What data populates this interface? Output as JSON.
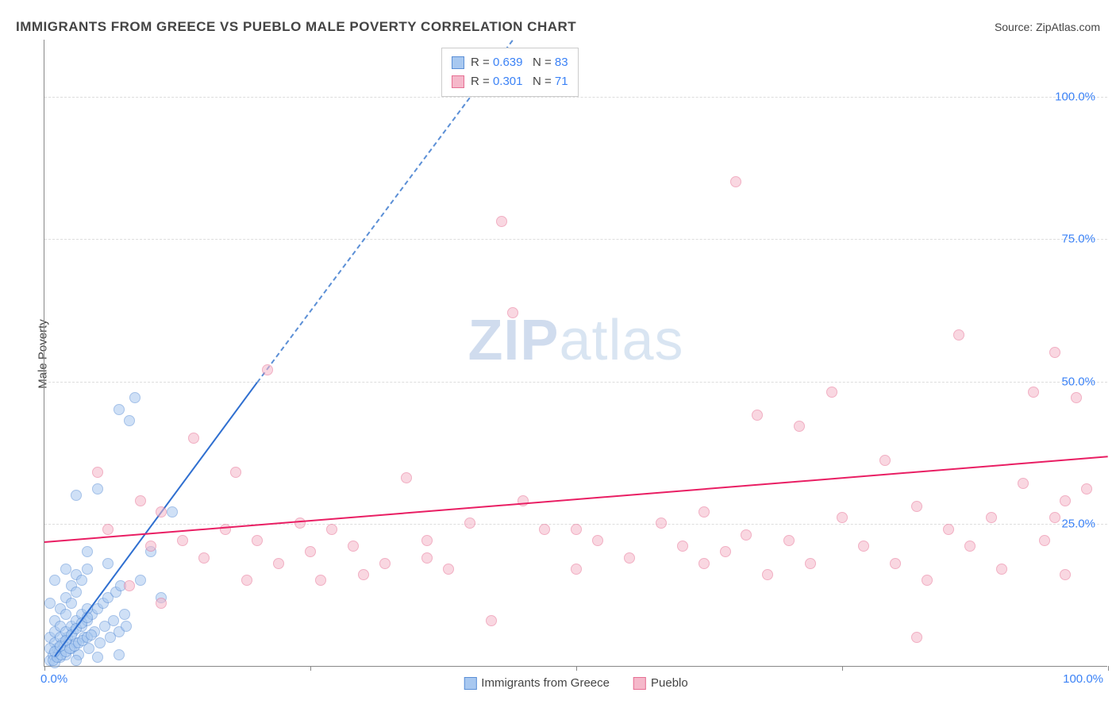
{
  "title": "IMMIGRANTS FROM GREECE VS PUEBLO MALE POVERTY CORRELATION CHART",
  "source_label": "Source: ",
  "source_name": "ZipAtlas.com",
  "ylabel": "Male Poverty",
  "watermark_bold": "ZIP",
  "watermark_light": "atlas",
  "chart": {
    "type": "scatter",
    "xlim": [
      0,
      100
    ],
    "ylim": [
      0,
      110
    ],
    "background_color": "#ffffff",
    "grid_color": "#dddddd",
    "axis_color": "#888888",
    "y_ticks": [
      25,
      50,
      75,
      100
    ],
    "y_tick_labels": [
      "25.0%",
      "50.0%",
      "75.0%",
      "100.0%"
    ],
    "x_ticks": [
      0,
      25,
      50,
      75,
      100
    ],
    "x_tick_origin_label": "0.0%",
    "x_tick_end_label": "100.0%",
    "marker_radius": 7,
    "marker_opacity": 0.55
  },
  "series": [
    {
      "name": "Immigrants from Greece",
      "fill_color": "#a8c8f0",
      "stroke_color": "#5b8fd6",
      "line_color": "#2f6fd0",
      "r_label": "R = ",
      "r_value": "0.639",
      "n_label": "N = ",
      "n_value": "83",
      "trend": {
        "x1": 1,
        "y1": 2,
        "x2": 20,
        "y2": 50,
        "extend_dash_to_x": 44,
        "extend_dash_to_y": 110
      },
      "points": [
        [
          0.5,
          1
        ],
        [
          0.8,
          2
        ],
        [
          1,
          0.5
        ],
        [
          1.2,
          3
        ],
        [
          1.5,
          1.5
        ],
        [
          1.7,
          4
        ],
        [
          2,
          2
        ],
        [
          2.2,
          5
        ],
        [
          2.5,
          3
        ],
        [
          2.7,
          6
        ],
        [
          3,
          4
        ],
        [
          3.2,
          2
        ],
        [
          3.5,
          7
        ],
        [
          3.7,
          5
        ],
        [
          4,
          8
        ],
        [
          4.2,
          3
        ],
        [
          4.5,
          9
        ],
        [
          4.7,
          6
        ],
        [
          5,
          10
        ],
        [
          5.2,
          4
        ],
        [
          5.5,
          11
        ],
        [
          5.7,
          7
        ],
        [
          6,
          12
        ],
        [
          6.2,
          5
        ],
        [
          6.5,
          8
        ],
        [
          6.7,
          13
        ],
        [
          7,
          6
        ],
        [
          7.2,
          14
        ],
        [
          7.5,
          9
        ],
        [
          7.7,
          7
        ],
        [
          1,
          8
        ],
        [
          1.5,
          10
        ],
        [
          2,
          12
        ],
        [
          2.5,
          14
        ],
        [
          3,
          16
        ],
        [
          0.5,
          5
        ],
        [
          1,
          6
        ],
        [
          1.5,
          7
        ],
        [
          2,
          9
        ],
        [
          2.5,
          11
        ],
        [
          3,
          13
        ],
        [
          3.5,
          15
        ],
        [
          4,
          17
        ],
        [
          1,
          4
        ],
        [
          1.5,
          5
        ],
        [
          2,
          6
        ],
        [
          2.5,
          7
        ],
        [
          3,
          8
        ],
        [
          3.5,
          9
        ],
        [
          4,
          10
        ],
        [
          0.8,
          1
        ],
        [
          1.2,
          1.5
        ],
        [
          1.6,
          2
        ],
        [
          2.0,
          2.5
        ],
        [
          2.4,
          3
        ],
        [
          2.8,
          3.5
        ],
        [
          3.2,
          4
        ],
        [
          3.6,
          4.5
        ],
        [
          4.0,
          5
        ],
        [
          4.4,
          5.5
        ],
        [
          0.5,
          3
        ],
        [
          1,
          2.5
        ],
        [
          1.5,
          3.5
        ],
        [
          2,
          4.5
        ],
        [
          2.5,
          5.5
        ],
        [
          3,
          6.5
        ],
        [
          3.5,
          7.5
        ],
        [
          4,
          8.5
        ],
        [
          3,
          30
        ],
        [
          5,
          31
        ],
        [
          8,
          43
        ],
        [
          8.5,
          47
        ],
        [
          7,
          45
        ],
        [
          9,
          15
        ],
        [
          12,
          27
        ],
        [
          11,
          12
        ],
        [
          10,
          20
        ],
        [
          6,
          18
        ],
        [
          4,
          20
        ],
        [
          2,
          17
        ],
        [
          1,
          15
        ],
        [
          0.5,
          11
        ],
        [
          3,
          1
        ],
        [
          5,
          1.5
        ],
        [
          7,
          2
        ]
      ]
    },
    {
      "name": "Pueblo",
      "fill_color": "#f5b8ca",
      "stroke_color": "#e66f93",
      "line_color": "#e91e63",
      "r_label": "R = ",
      "r_value": "0.301",
      "n_label": "N = ",
      "n_value": "71",
      "trend": {
        "x1": 0,
        "y1": 22,
        "x2": 100,
        "y2": 37
      },
      "points": [
        [
          5,
          34
        ],
        [
          6,
          24
        ],
        [
          8,
          14
        ],
        [
          9,
          29
        ],
        [
          10,
          21
        ],
        [
          11,
          27
        ],
        [
          13,
          22
        ],
        [
          14,
          40
        ],
        [
          15,
          19
        ],
        [
          17,
          24
        ],
        [
          18,
          34
        ],
        [
          19,
          15
        ],
        [
          20,
          22
        ],
        [
          21,
          52
        ],
        [
          22,
          18
        ],
        [
          24,
          25
        ],
        [
          25,
          20
        ],
        [
          26,
          15
        ],
        [
          27,
          24
        ],
        [
          29,
          21
        ],
        [
          30,
          16
        ],
        [
          32,
          18
        ],
        [
          34,
          33
        ],
        [
          36,
          22
        ],
        [
          38,
          17
        ],
        [
          40,
          25
        ],
        [
          42,
          8
        ],
        [
          43,
          78
        ],
        [
          44,
          62
        ],
        [
          45,
          29
        ],
        [
          47,
          24
        ],
        [
          50,
          17
        ],
        [
          52,
          22
        ],
        [
          55,
          19
        ],
        [
          58,
          25
        ],
        [
          60,
          21
        ],
        [
          62,
          27
        ],
        [
          64,
          20
        ],
        [
          65,
          85
        ],
        [
          66,
          23
        ],
        [
          67,
          44
        ],
        [
          68,
          16
        ],
        [
          70,
          22
        ],
        [
          71,
          42
        ],
        [
          72,
          18
        ],
        [
          74,
          48
        ],
        [
          75,
          26
        ],
        [
          77,
          21
        ],
        [
          79,
          36
        ],
        [
          80,
          18
        ],
        [
          82,
          28
        ],
        [
          83,
          15
        ],
        [
          85,
          24
        ],
        [
          86,
          58
        ],
        [
          87,
          21
        ],
        [
          89,
          26
        ],
        [
          90,
          17
        ],
        [
          92,
          32
        ],
        [
          93,
          48
        ],
        [
          94,
          22
        ],
        [
          95,
          55
        ],
        [
          96,
          29
        ],
        [
          97,
          47
        ],
        [
          98,
          31
        ],
        [
          95,
          26
        ],
        [
          96,
          16
        ],
        [
          82,
          5
        ],
        [
          62,
          18
        ],
        [
          50,
          24
        ],
        [
          36,
          19
        ],
        [
          11,
          11
        ]
      ]
    }
  ],
  "legend_bottom": [
    {
      "label": "Immigrants from Greece",
      "fill": "#a8c8f0",
      "stroke": "#5b8fd6"
    },
    {
      "label": "Pueblo",
      "fill": "#f5b8ca",
      "stroke": "#e66f93"
    }
  ]
}
